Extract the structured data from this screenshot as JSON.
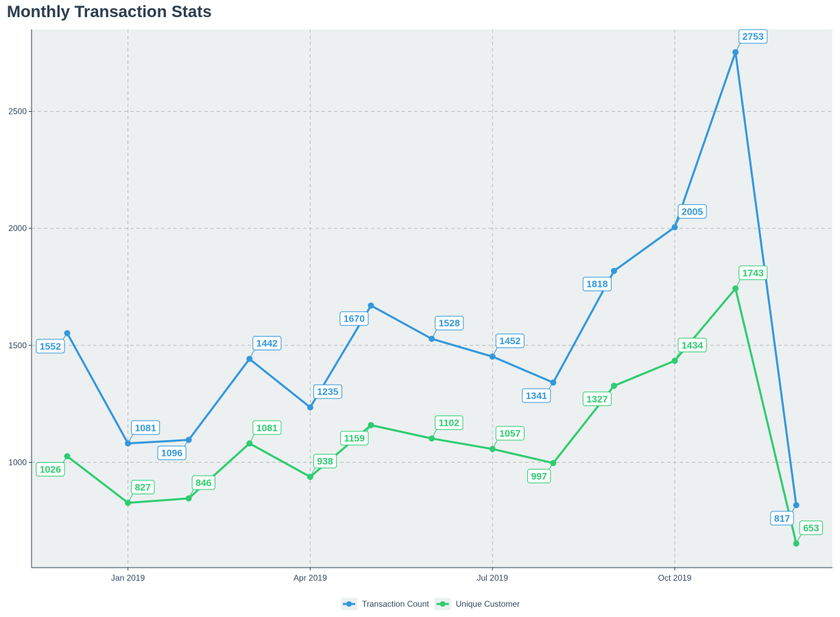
{
  "chart_data": {
    "type": "line",
    "title": "Monthly Transaction Stats",
    "xlabel": "",
    "ylabel": "",
    "x": [
      "2018-12",
      "2019-01",
      "2019-02",
      "2019-03",
      "2019-04",
      "2019-05",
      "2019-06",
      "2019-07",
      "2019-08",
      "2019-09",
      "2019-10",
      "2019-11",
      "2019-12"
    ],
    "x_ticks": [
      {
        "value": "2019-01",
        "label": "Jan 2019"
      },
      {
        "value": "2019-04",
        "label": "Apr 2019"
      },
      {
        "value": "2019-07",
        "label": "Jul 2019"
      },
      {
        "value": "2019-10",
        "label": "Oct 2019"
      }
    ],
    "y_ticks": [
      1000,
      1500,
      2000,
      2500
    ],
    "ylim": [
      550,
      2850
    ],
    "grid": true,
    "legend_position": "bottom",
    "background": "#ecf0f1",
    "series": [
      {
        "name": "Transaction Count",
        "color": "#3498db",
        "values": [
          1552,
          1081,
          1096,
          1442,
          1235,
          1670,
          1528,
          1452,
          1341,
          1818,
          2005,
          2753,
          817
        ],
        "labels": [
          "1552",
          "1081",
          "1096",
          "1442",
          "1235",
          "1670",
          "1528",
          "1452",
          "1341",
          "1818",
          "2005",
          "2753",
          "817"
        ]
      },
      {
        "name": "Unique Customer",
        "color": "#2ecc71",
        "values": [
          1026,
          827,
          846,
          1081,
          938,
          1159,
          1102,
          1057,
          997,
          1327,
          1434,
          1743,
          653
        ],
        "labels": [
          "1026",
          "827",
          "846",
          "1081",
          "938",
          "1159",
          "1102",
          "1057",
          "997",
          "1327",
          "1434",
          "1743",
          "653"
        ]
      }
    ]
  }
}
